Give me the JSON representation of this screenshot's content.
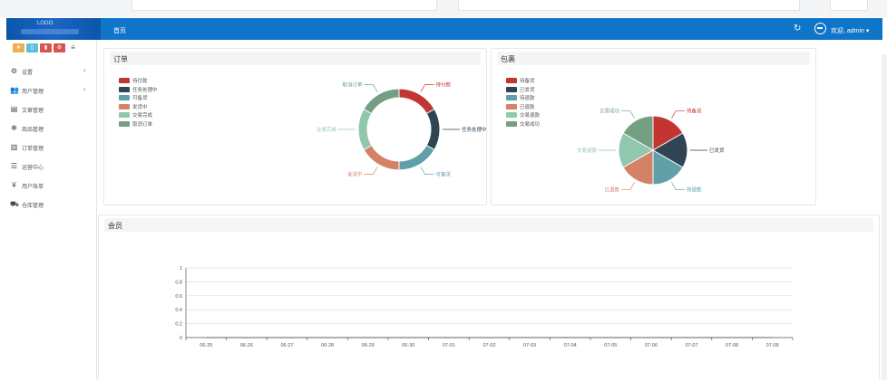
{
  "header": {
    "breadcrumb": "首页",
    "user_label": "欢迎, admin",
    "logo_text": "LOGO"
  },
  "toolbar": {
    "buttons": [
      {
        "icon": "star-icon",
        "color": "#f0ad4e"
      },
      {
        "icon": "file-icon",
        "color": "#5bc0de"
      },
      {
        "icon": "trash-icon",
        "color": "#d9534f"
      },
      {
        "icon": "gear-icon",
        "color": "#d9534f"
      },
      {
        "icon": "menu-icon",
        "color": "#ffffff"
      }
    ]
  },
  "sidebar": {
    "items": [
      {
        "label": "设置",
        "icon": "gears-icon",
        "glyph": "⚙",
        "has_children": true
      },
      {
        "label": "用户管理",
        "icon": "users-icon",
        "glyph": "👥",
        "has_children": true
      },
      {
        "label": "文章管理",
        "icon": "article-icon",
        "glyph": "▤",
        "has_children": false
      },
      {
        "label": "商品管理",
        "icon": "flower-icon",
        "glyph": "✻",
        "has_children": false
      },
      {
        "label": "订单管理",
        "icon": "order-icon",
        "glyph": "▥",
        "has_children": false
      },
      {
        "label": "运营中心",
        "icon": "list-icon",
        "glyph": "☰",
        "has_children": false
      },
      {
        "label": "用户账单",
        "icon": "yen-icon",
        "glyph": "¥",
        "has_children": false
      },
      {
        "label": "仓库管理",
        "icon": "truck-icon",
        "glyph": "⛟",
        "has_children": false
      }
    ]
  },
  "panels": {
    "orders_title": "订单",
    "packages_title": "包裹",
    "members_title": "会员"
  },
  "chart_data": [
    {
      "type": "pie",
      "variant": "donut",
      "title": "订单",
      "legend_position": "top-left",
      "labels": [
        "待付款",
        "任务处理中",
        "可备货",
        "发货中",
        "交易完成",
        "取消订单"
      ],
      "values": [
        1,
        1,
        1,
        1,
        1,
        1
      ],
      "colors": [
        "#c23531",
        "#2f4554",
        "#61a0a8",
        "#d48265",
        "#91c7ae",
        "#749f83"
      ]
    },
    {
      "type": "pie",
      "title": "包裹",
      "legend_position": "top-left",
      "labels": [
        "待备货",
        "已发货",
        "待退款",
        "已退款",
        "交易退款",
        "交易成功"
      ],
      "values": [
        1,
        1,
        1,
        1,
        1,
        1
      ],
      "colors": [
        "#c23531",
        "#2f4554",
        "#61a0a8",
        "#d48265",
        "#91c7ae",
        "#749f83"
      ]
    },
    {
      "type": "line",
      "title": "会员",
      "categories": [
        "06-25",
        "06-26",
        "06-27",
        "06-28",
        "06-29",
        "06-30",
        "07-01",
        "07-02",
        "07-03",
        "07-04",
        "07-05",
        "07-06",
        "07-07",
        "07-08",
        "07-09"
      ],
      "yticks": [
        "0",
        "0.2",
        "0.4",
        "0.6",
        "0.8",
        "1"
      ],
      "ylim": [
        0,
        1
      ],
      "series": [
        {
          "values": [
            0,
            0,
            0,
            0,
            0,
            0,
            0,
            0,
            0,
            0,
            0,
            0,
            0,
            0,
            0
          ]
        }
      ],
      "grid": true
    }
  ]
}
